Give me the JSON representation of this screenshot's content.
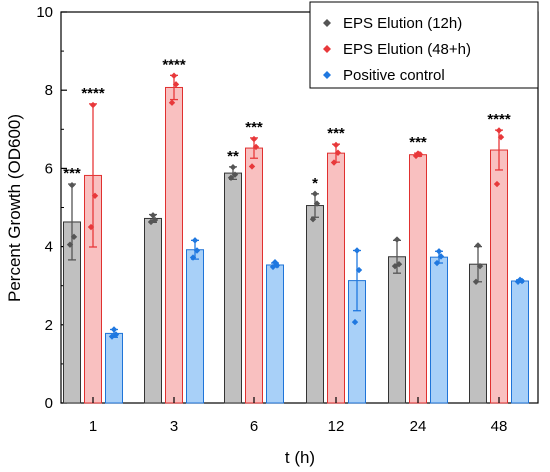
{
  "chart_data": {
    "type": "bar",
    "xlabel": "t (h)",
    "ylabel": "Percent Growth (OD600)",
    "ylim": [
      0,
      10
    ],
    "yticks": [
      0,
      2,
      4,
      6,
      8,
      10
    ],
    "categories": [
      "1",
      "3",
      "6",
      "12",
      "24",
      "48"
    ],
    "legend_position": "top-right",
    "series": [
      {
        "name": "EPS Elution (12h)",
        "fill": "#c0c0c0",
        "edge": "#333333",
        "marker": "#555555",
        "values": [
          4.63,
          4.72,
          5.88,
          5.05,
          3.74,
          3.55
        ],
        "errors": [
          0.97,
          0.1,
          0.16,
          0.3,
          0.42,
          0.45
        ],
        "points": [
          [
            5.57,
            4.25,
            4.05
          ],
          [
            4.8,
            4.68,
            4.63
          ],
          [
            6.03,
            5.84,
            5.76
          ],
          [
            5.35,
            5.1,
            4.7
          ],
          [
            4.18,
            3.55,
            3.5
          ],
          [
            4.03,
            3.5,
            3.1
          ]
        ]
      },
      {
        "name": "EPS Elution (48+h)",
        "fill": "#f9c0c0",
        "edge": "#e0302f",
        "marker": "#e8383a",
        "values": [
          5.82,
          8.07,
          6.52,
          6.39,
          6.35,
          6.47
        ],
        "errors": [
          1.83,
          0.31,
          0.26,
          0.23,
          0.04,
          0.51
        ],
        "points": [
          [
            7.62,
            5.3,
            4.5
          ],
          [
            8.37,
            8.15,
            7.68
          ],
          [
            6.75,
            6.55,
            6.05
          ],
          [
            6.6,
            6.4,
            6.15
          ],
          [
            6.38,
            6.36,
            6.32
          ],
          [
            6.97,
            6.8,
            5.6
          ]
        ]
      },
      {
        "name": "Positive control",
        "fill": "#a8d0f8",
        "edge": "#1f74d8",
        "marker": "#1f78e0",
        "values": [
          1.78,
          3.92,
          3.53,
          3.13,
          3.73,
          3.12
        ],
        "errors": [
          0.1,
          0.24,
          0.05,
          0.77,
          0.15,
          0.03
        ],
        "points": [
          [
            1.88,
            1.75,
            1.7
          ],
          [
            4.16,
            3.9,
            3.72
          ],
          [
            3.6,
            3.52,
            3.48
          ],
          [
            3.9,
            3.4,
            2.07
          ],
          [
            3.88,
            3.75,
            3.58
          ],
          [
            3.15,
            3.12,
            3.1
          ]
        ]
      }
    ],
    "annotations": [
      {
        "category": "1",
        "series": 0,
        "text": "***"
      },
      {
        "category": "1",
        "series": 1,
        "text": "****"
      },
      {
        "category": "3",
        "series": 1,
        "text": "****"
      },
      {
        "category": "6",
        "series": 0,
        "text": "**"
      },
      {
        "category": "6",
        "series": 1,
        "text": "***"
      },
      {
        "category": "12",
        "series": 0,
        "text": "*"
      },
      {
        "category": "12",
        "series": 1,
        "text": "***"
      },
      {
        "category": "24",
        "series": 1,
        "text": "***"
      },
      {
        "category": "48",
        "series": 1,
        "text": "****"
      }
    ]
  }
}
